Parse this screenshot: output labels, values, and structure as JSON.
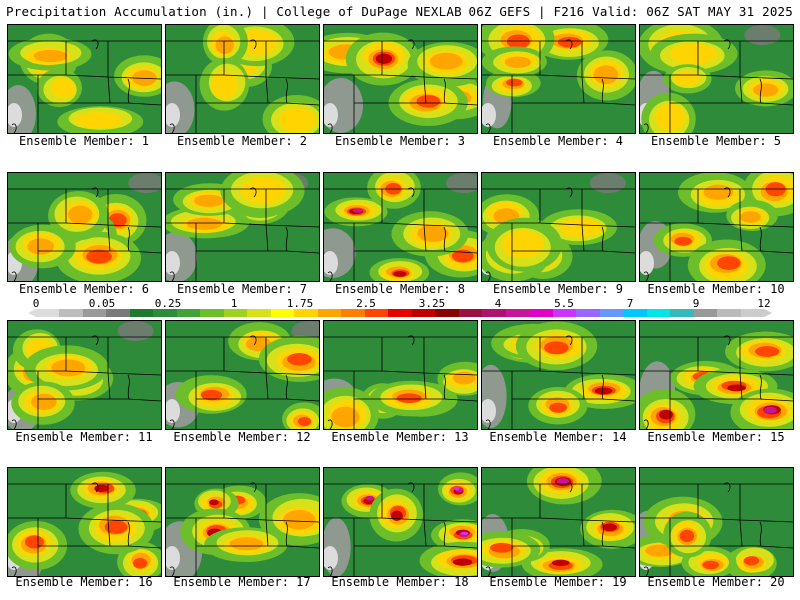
{
  "header": {
    "title_left": "Precipitation Accumulation (in.) | College of DuPage NEXLAB",
    "title_right": "06Z GEFS | F216 Valid: 06Z SAT MAY 31 2025"
  },
  "colorbar": {
    "tick_labels": [
      "0",
      "0.05",
      "0.25",
      "1",
      "1.75",
      "2.5",
      "3.25",
      "4",
      "5.5",
      "7",
      "9",
      "12"
    ],
    "colors": [
      "#dcdcdc",
      "#bdbdbd",
      "#9a9a9a",
      "#7a7a7a",
      "#1f7a2e",
      "#2e8b3a",
      "#3fa33a",
      "#6cbf2a",
      "#9fd21f",
      "#d7e11a",
      "#ffff00",
      "#ffd400",
      "#ffa500",
      "#ff7f00",
      "#ff4500",
      "#e60000",
      "#c00000",
      "#8b0000",
      "#9c1040",
      "#b0106e",
      "#c81496",
      "#e000c8",
      "#cc33ff",
      "#9966ff",
      "#6699ff",
      "#00c8ff",
      "#00e5e5",
      "#33bbbb",
      "#999999",
      "#bbbbbb",
      "#cccccc"
    ]
  },
  "members": [
    {
      "caption": "Ensemble Member: 1"
    },
    {
      "caption": "Ensemble Member: 2"
    },
    {
      "caption": "Ensemble Member: 3"
    },
    {
      "caption": "Ensemble Member: 4"
    },
    {
      "caption": "Ensemble Member: 5"
    },
    {
      "caption": "Ensemble Member: 6"
    },
    {
      "caption": "Ensemble Member: 7"
    },
    {
      "caption": "Ensemble Member: 8"
    },
    {
      "caption": "Ensemble Member: 9"
    },
    {
      "caption": "Ensemble Member: 10"
    },
    {
      "caption": "Ensemble Member: 11"
    },
    {
      "caption": "Ensemble Member: 12"
    },
    {
      "caption": "Ensemble Member: 13"
    },
    {
      "caption": "Ensemble Member: 14"
    },
    {
      "caption": "Ensemble Member: 15"
    },
    {
      "caption": "Ensemble Member: 16"
    },
    {
      "caption": "Ensemble Member: 17"
    },
    {
      "caption": "Ensemble Member: 18"
    },
    {
      "caption": "Ensemble Member: 19"
    },
    {
      "caption": "Ensemble Member: 20"
    }
  ]
}
